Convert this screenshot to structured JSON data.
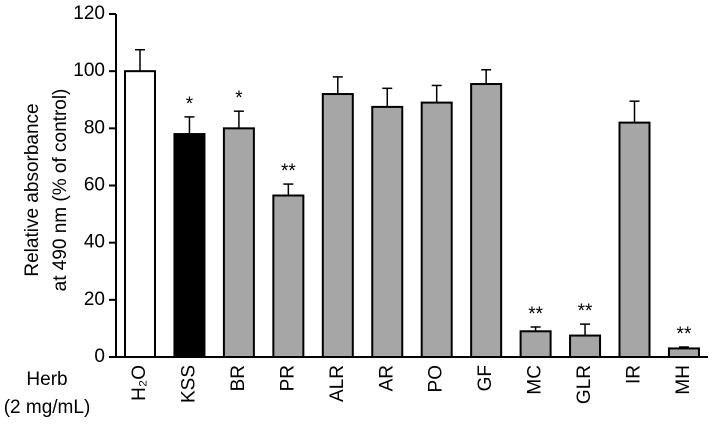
{
  "chart_data": {
    "type": "bar",
    "y_label": [
      "Relative absorbance",
      "at 490 nm (% of control)"
    ],
    "x_label": [
      "Herb",
      "(2 mg/mL)"
    ],
    "categories": [
      "H₂O",
      "KSS",
      "BR",
      "PR",
      "ALR",
      "AR",
      "PO",
      "GF",
      "MC",
      "GLR",
      "IR",
      "MH"
    ],
    "values": [
      100,
      78,
      80,
      56.5,
      92,
      87.5,
      89,
      95.5,
      9,
      7.5,
      82,
      3
    ],
    "errors": [
      7.5,
      6,
      6,
      4,
      6,
      6.5,
      6,
      5,
      1.5,
      4,
      7.5,
      0.5
    ],
    "colors": [
      "#ffffff",
      "#000000",
      "#a6a6a6",
      "#a6a6a6",
      "#a6a6a6",
      "#a6a6a6",
      "#a6a6a6",
      "#a6a6a6",
      "#a6a6a6",
      "#a6a6a6",
      "#a6a6a6",
      "#a6a6a6"
    ],
    "significance": [
      null,
      "*",
      "*",
      "**",
      null,
      null,
      null,
      null,
      "**",
      "**",
      null,
      "**"
    ],
    "ylim": [
      0,
      120
    ],
    "yticks": [
      0,
      20,
      40,
      60,
      80,
      100,
      120
    ]
  }
}
